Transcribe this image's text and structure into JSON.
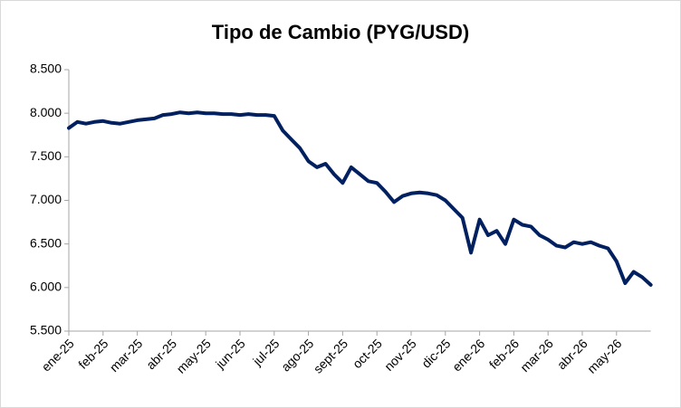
{
  "chart_data": {
    "type": "line",
    "title": "Tipo de Cambio (PYG/USD)",
    "categories": [
      "ene-25",
      null,
      null,
      null,
      "feb-25",
      null,
      null,
      null,
      "mar-25",
      null,
      null,
      null,
      "abr-25",
      null,
      null,
      null,
      "may-25",
      null,
      null,
      null,
      "jun-25",
      null,
      null,
      null,
      "jul-25",
      null,
      null,
      null,
      "ago-25",
      null,
      null,
      null,
      "sept-25",
      null,
      null,
      null,
      "oct-25",
      null,
      null,
      null,
      "nov-25",
      null,
      null,
      null,
      "dic-25",
      null,
      null,
      null,
      "ene-26",
      null,
      null,
      null,
      "feb-26",
      null,
      null,
      null,
      "mar-26",
      null,
      null,
      null,
      "abr-26",
      null,
      null,
      null,
      "may-26",
      null,
      null,
      null,
      null
    ],
    "series": [
      {
        "name": "PYG/USD",
        "color": "#002060",
        "values": [
          7830,
          7900,
          7880,
          7900,
          7910,
          7890,
          7880,
          7900,
          7920,
          7930,
          7940,
          7980,
          7990,
          8010,
          8000,
          8010,
          8000,
          8000,
          7990,
          7990,
          7980,
          7990,
          7980,
          7980,
          7970,
          7800,
          7700,
          7600,
          7450,
          7380,
          7420,
          7300,
          7200,
          7380,
          7300,
          7220,
          7200,
          7100,
          6980,
          7050,
          7080,
          7090,
          7080,
          7060,
          7000,
          6900,
          6800,
          6400,
          6780,
          6600,
          6650,
          6500,
          6780,
          6720,
          6700,
          6600,
          6550,
          6480,
          6460,
          6520,
          6500,
          6520,
          6480,
          6450,
          6300,
          6050,
          6180,
          6120,
          6030
        ]
      }
    ],
    "ylim": [
      5500,
      8500
    ],
    "yticks": [
      {
        "value": 5500,
        "label": "5.500"
      },
      {
        "value": 6000,
        "label": "6.000"
      },
      {
        "value": 6500,
        "label": "6.500"
      },
      {
        "value": 7000,
        "label": "7.000"
      },
      {
        "value": 7500,
        "label": "7.500"
      },
      {
        "value": 8000,
        "label": "8.000"
      },
      {
        "value": 8500,
        "label": "8.500"
      }
    ]
  }
}
